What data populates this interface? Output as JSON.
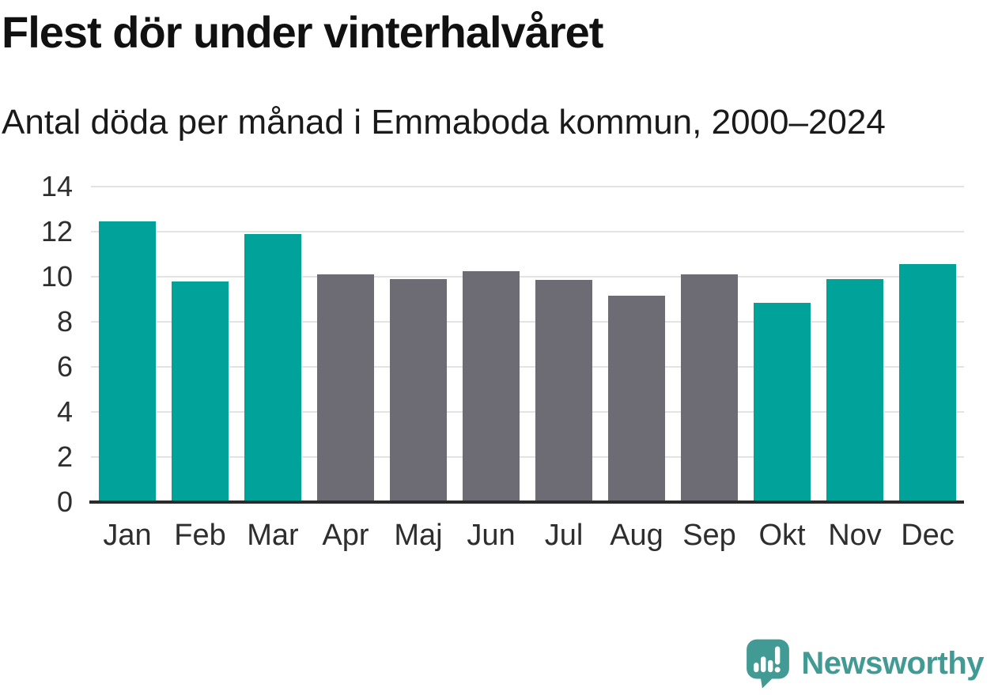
{
  "header": {
    "title": "Flest dör under vinterhalvåret",
    "subtitle": "Antal döda per månad i Emmaboda kommun, 2000–2024"
  },
  "chart_data": {
    "type": "bar",
    "title": "Flest dör under vinterhalvåret",
    "subtitle": "Antal döda per månad i Emmaboda kommun, 2000–2024",
    "categories": [
      "Jan",
      "Feb",
      "Mar",
      "Apr",
      "Maj",
      "Jun",
      "Jul",
      "Aug",
      "Sep",
      "Okt",
      "Nov",
      "Dec"
    ],
    "values": [
      12.45,
      9.8,
      11.9,
      10.1,
      9.9,
      10.25,
      9.85,
      9.15,
      10.1,
      8.85,
      9.9,
      10.55
    ],
    "bar_color_keys": [
      "highlight",
      "highlight",
      "highlight",
      "default",
      "default",
      "default",
      "default",
      "default",
      "default",
      "highlight",
      "highlight",
      "highlight"
    ],
    "colors": {
      "highlight": "#00a29a",
      "default": "#6d6c74"
    },
    "xlabel": "",
    "ylabel": "",
    "ylim": [
      0,
      14
    ],
    "yticks": [
      0,
      2,
      4,
      6,
      8,
      10,
      12,
      14
    ],
    "grid": true,
    "legend": "none"
  },
  "footer": {
    "brand": "Newsworthy",
    "brand_color": "#429a94",
    "logo_icon": "newsworthy-speech-bubble-bar-chart-icon"
  }
}
